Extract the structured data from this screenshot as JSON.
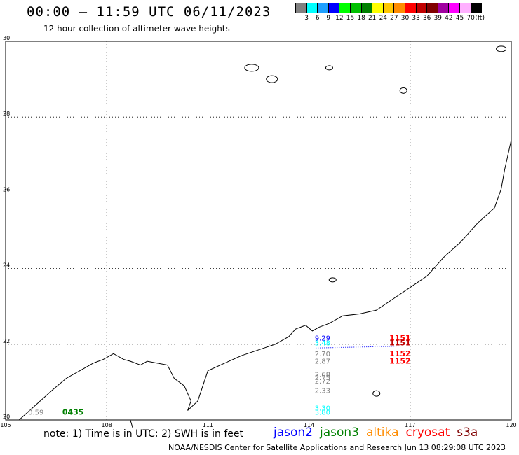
{
  "header": {
    "title": "00:00 – 11:59 UTC 06/11/2023",
    "subtitle": "12 hour collection of altimeter wave heights"
  },
  "legend": {
    "unit": "(ft)",
    "bins": [
      {
        "label": "3",
        "color": "#808080"
      },
      {
        "label": "6",
        "color": "#00ffff"
      },
      {
        "label": "9",
        "color": "#1fa0ff"
      },
      {
        "label": "12",
        "color": "#0000ff"
      },
      {
        "label": "15",
        "color": "#00ff00"
      },
      {
        "label": "18",
        "color": "#00c000"
      },
      {
        "label": "21",
        "color": "#008000"
      },
      {
        "label": "24",
        "color": "#ffff00"
      },
      {
        "label": "27",
        "color": "#ffc800"
      },
      {
        "label": "30",
        "color": "#ff8c00"
      },
      {
        "label": "33",
        "color": "#ff0000"
      },
      {
        "label": "36",
        "color": "#c00000"
      },
      {
        "label": "39",
        "color": "#800000"
      },
      {
        "label": "42",
        "color": "#a000a0"
      },
      {
        "label": "45",
        "color": "#ff00ff"
      },
      {
        "label": "70",
        "color": "#ffb0ff"
      },
      {
        "label": "",
        "color": "#000000"
      }
    ]
  },
  "map": {
    "lon_range": [
      105,
      120
    ],
    "lat_range": [
      20,
      30
    ],
    "lon_ticks": [
      "105",
      "108",
      "111",
      "114",
      "117",
      "120"
    ],
    "lat_ticks": [
      "20",
      "22",
      "24",
      "26",
      "28",
      "30"
    ],
    "grid": true,
    "observations": [
      {
        "lon": 114.4,
        "lat": 22.1,
        "value": "9.29",
        "color": "#0000ff"
      },
      {
        "lon": 114.4,
        "lat": 21.97,
        "value": "3.48",
        "color": "#00ffff"
      },
      {
        "lon": 114.4,
        "lat": 21.68,
        "value": "2.70",
        "color": "#808080"
      },
      {
        "lon": 114.4,
        "lat": 21.49,
        "value": "2.87",
        "color": "#808080"
      },
      {
        "lon": 114.4,
        "lat": 21.14,
        "value": "2.68",
        "color": "#808080"
      },
      {
        "lon": 114.4,
        "lat": 21.05,
        "value": "2.75",
        "color": "#808080"
      },
      {
        "lon": 114.4,
        "lat": 20.96,
        "value": "2.72",
        "color": "#808080"
      },
      {
        "lon": 114.4,
        "lat": 20.71,
        "value": "2.33",
        "color": "#808080"
      },
      {
        "lon": 114.4,
        "lat": 20.25,
        "value": "3.30",
        "color": "#00ffff"
      },
      {
        "lon": 114.4,
        "lat": 20.14,
        "value": "3.80",
        "color": "#00ffff"
      },
      {
        "lon": 105.9,
        "lat": 20.14,
        "value": "0.59",
        "color": "#808080"
      }
    ],
    "pass_times": [
      {
        "lon": 116.7,
        "lat": 22.1,
        "text": "1151",
        "color": "#ff0000"
      },
      {
        "lon": 116.7,
        "lat": 21.97,
        "text": "1151",
        "color": "#c00000"
      },
      {
        "lon": 116.7,
        "lat": 21.68,
        "text": "1152",
        "color": "#ff0000"
      },
      {
        "lon": 116.7,
        "lat": 21.49,
        "text": "1152",
        "color": "#ff0000"
      },
      {
        "lon": 107.0,
        "lat": 20.14,
        "text": "0435",
        "color": "#008000"
      }
    ]
  },
  "footer": {
    "note": "note: 1) Time is in UTC; 2) SWH is in feet",
    "satellites": [
      {
        "name": "jason2",
        "color": "#0000ff"
      },
      {
        "name": "jason3",
        "color": "#008000"
      },
      {
        "name": "altika",
        "color": "#ff8c00"
      },
      {
        "name": "cryosat",
        "color": "#ff0000"
      },
      {
        "name": "s3a",
        "color": "#800000"
      }
    ],
    "credit": "NOAA/NESDIS Center for Satellite Applications and Research   Jun 13 08:29:08 UTC 2023"
  }
}
